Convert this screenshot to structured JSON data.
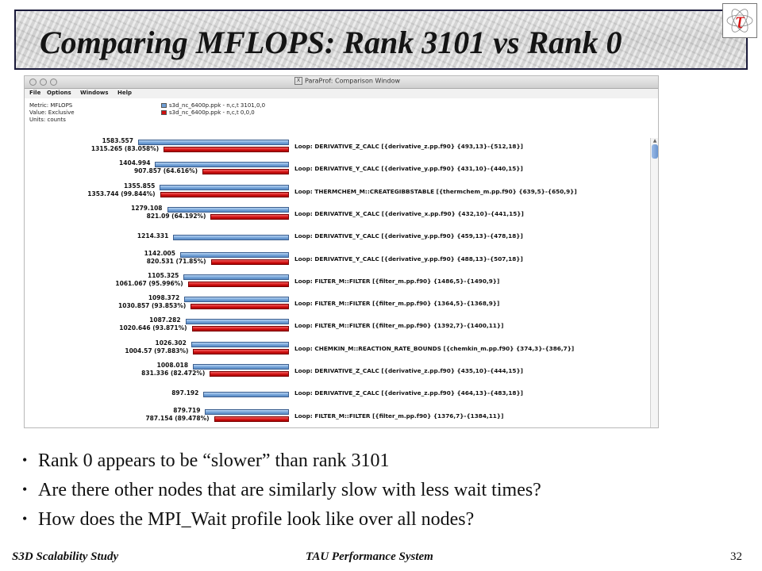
{
  "title": "Comparing MFLOPS: Rank 3101 vs Rank 0",
  "window": {
    "title": "ParaProf: Comparison Window",
    "menu": [
      "File",
      "Options",
      "Windows",
      "Help"
    ],
    "metric": "Metric: MFLOPS",
    "value": "Value: Exclusive",
    "units": "Units: counts",
    "legend": [
      {
        "label": "s3d_nc_6400p.ppk - n,c,t 3101,0,0",
        "color": "#6f9fd6"
      },
      {
        "label": "s3d_nc_6400p.ppk - n,c,t 0,0,0",
        "color": "#d01010"
      }
    ]
  },
  "chart_data": {
    "type": "bar",
    "orientation": "horizontal",
    "series": [
      {
        "name": "s3d_nc_6400p.ppk - n,c,t 3101,0,0",
        "values": [
          1583.557,
          1404.994,
          1355.855,
          1279.108,
          1214.331,
          1142.005,
          1105.325,
          1098.372,
          1087.282,
          1026.302,
          1008.018,
          897.192,
          879.719
        ]
      },
      {
        "name": "s3d_nc_6400p.ppk - n,c,t 0,0,0",
        "values": [
          1315.265,
          907.857,
          1353.744,
          821.09,
          null,
          820.531,
          1061.067,
          1030.857,
          1020.646,
          1004.57,
          831.336,
          null,
          787.154
        ]
      }
    ],
    "rows": [
      {
        "label": "Loop: DERIVATIVE_Z_CALC [{derivative_z.pp.f90} {493,13}-{512,18}]",
        "blue_text": "1583.557",
        "red_text": "1315.265 (83.058%)",
        "blue": 1583.557,
        "red": 1315.265
      },
      {
        "label": "Loop: DERIVATIVE_Y_CALC [{derivative_y.pp.f90} {431,10}-{440,15}]",
        "blue_text": "1404.994",
        "red_text": "907.857 (64.616%)",
        "blue": 1404.994,
        "red": 907.857
      },
      {
        "label": "Loop: THERMCHEM_M::CREATEGIBBSTABLE [{thermchem_m.pp.f90} {639,5}-{650,9}]",
        "blue_text": "1355.855",
        "red_text": "1353.744 (99.844%)",
        "blue": 1355.855,
        "red": 1353.744
      },
      {
        "label": "Loop: DERIVATIVE_X_CALC [{derivative_x.pp.f90} {432,10}-{441,15}]",
        "blue_text": "1279.108",
        "red_text": "821.09 (64.192%)",
        "blue": 1279.108,
        "red": 821.09
      },
      {
        "label": "Loop: DERIVATIVE_Y_CALC [{derivative_y.pp.f90} {459,13}-{478,18}]",
        "blue_text": "1214.331",
        "red_text": "",
        "blue": 1214.331,
        "red": null
      },
      {
        "label": "Loop: DERIVATIVE_Y_CALC [{derivative_y.pp.f90} {488,13}-{507,18}]",
        "blue_text": "1142.005",
        "red_text": "820.531 (71.85%)",
        "blue": 1142.005,
        "red": 820.531
      },
      {
        "label": "Loop: FILTER_M::FILTER [{filter_m.pp.f90} {1486,5}-{1490,9}]",
        "blue_text": "1105.325",
        "red_text": "1061.067 (95.996%)",
        "blue": 1105.325,
        "red": 1061.067
      },
      {
        "label": "Loop: FILTER_M::FILTER [{filter_m.pp.f90} {1364,5}-{1368,9}]",
        "blue_text": "1098.372",
        "red_text": "1030.857 (93.853%)",
        "blue": 1098.372,
        "red": 1030.857
      },
      {
        "label": "Loop: FILTER_M::FILTER [{filter_m.pp.f90} {1392,7}-{1400,11}]",
        "blue_text": "1087.282",
        "red_text": "1020.646 (93.871%)",
        "blue": 1087.282,
        "red": 1020.646
      },
      {
        "label": "Loop: CHEMKIN_M::REACTION_RATE_BOUNDS [{chemkin_m.pp.f90} {374,3}-{386,7}]",
        "blue_text": "1026.302",
        "red_text": "1004.57 (97.883%)",
        "blue": 1026.302,
        "red": 1004.57
      },
      {
        "label": "Loop: DERIVATIVE_Z_CALC [{derivative_z.pp.f90} {435,10}-{444,15}]",
        "blue_text": "1008.018",
        "red_text": "831.336 (82.472%)",
        "blue": 1008.018,
        "red": 831.336
      },
      {
        "label": "Loop: DERIVATIVE_Z_CALC [{derivative_z.pp.f90} {464,13}-{483,18}]",
        "blue_text": "897.192",
        "red_text": "",
        "blue": 897.192,
        "red": null
      },
      {
        "label": "Loop: FILTER_M::FILTER [{filter_m.pp.f90} {1376,7}-{1384,11}]",
        "blue_text": "879.719",
        "red_text": "787.154 (89.478%)",
        "blue": 879.719,
        "red": 787.154
      }
    ]
  },
  "bullets": [
    "Rank 0 appears to be “slower” than rank 3101",
    "Are there other nodes that are similarly slow with less wait times?",
    "How does the MPI_Wait profile look like over all nodes?"
  ],
  "footer": {
    "left": "S3D Scalability Study",
    "center": "TAU Performance System",
    "page": "32"
  }
}
